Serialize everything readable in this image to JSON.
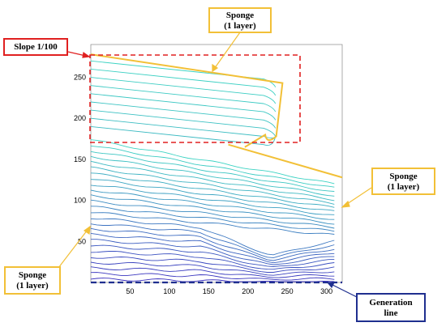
{
  "callouts": {
    "sponge_top": {
      "line1": "Sponge",
      "line2": "(1 layer)"
    },
    "slope": {
      "text": "Slope 1/100"
    },
    "sponge_right": {
      "line1": "Sponge",
      "line2": "(1 layer)"
    },
    "sponge_left": {
      "line1": "Sponge",
      "line2": "(1 layer)"
    },
    "generation": {
      "line1": "Generation",
      "line2": "line"
    }
  },
  "colors": {
    "sponge": "#f2c037",
    "slope_region": "#e02020",
    "generation": "#1f2f8f",
    "contour_low": "#3a2fbf",
    "contour_high": "#3cd3c3"
  },
  "chart_data": {
    "type": "contour",
    "x_ticks": [
      "50",
      "100",
      "150",
      "200",
      "250",
      "300"
    ],
    "y_ticks": [
      "50",
      "100",
      "150",
      "200",
      "250"
    ],
    "xlim": [
      0,
      320
    ],
    "ylim": [
      0,
      290
    ]
  }
}
